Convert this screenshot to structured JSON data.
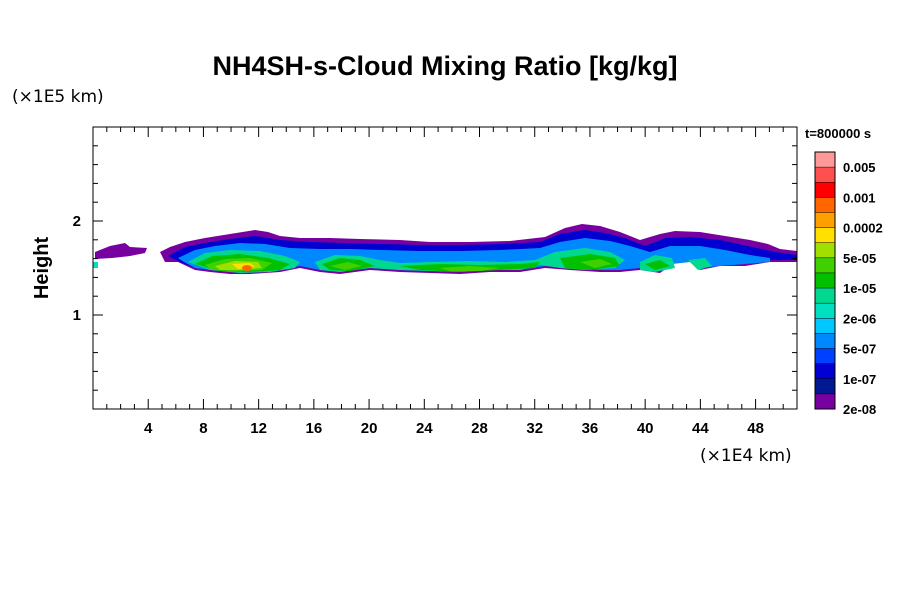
{
  "chart_data": {
    "type": "heatmap",
    "title": "NH4SH-s-Cloud Mixing Ratio [kg/kg]",
    "ylabel": "Height",
    "x_unit": "(×1E4 km)",
    "y_unit": "(×1E5 km)",
    "time_label": "t=800000 s",
    "xlim": [
      0,
      51
    ],
    "ylim": [
      0,
      3
    ],
    "x_ticks": [
      "4",
      "8",
      "12",
      "16",
      "20",
      "24",
      "28",
      "32",
      "36",
      "40",
      "44",
      "48"
    ],
    "x_tick_values": [
      4,
      8,
      12,
      16,
      20,
      24,
      28,
      32,
      36,
      40,
      44,
      48
    ],
    "y_ticks": [
      "1",
      "2"
    ],
    "y_tick_values": [
      1,
      2
    ],
    "legend": {
      "labels": [
        "0.005",
        "0.001",
        "0.0002",
        "5e-05",
        "1e-05",
        "2e-06",
        "5e-07",
        "1e-07",
        "2e-08"
      ],
      "colors": [
        "#ff9999",
        "#ff5050",
        "#ff0000",
        "#ff6600",
        "#ffa000",
        "#ffe000",
        "#a0e000",
        "#40d000",
        "#00c000",
        "#00d890",
        "#00e0c0",
        "#00c8ff",
        "#0088ff",
        "#0040ff",
        "#0000d0",
        "#001890",
        "#7800a0"
      ]
    },
    "cloud_layer": {
      "base_height": 1.45,
      "top_height": 1.95,
      "x_extent": [
        0,
        51
      ],
      "cores": [
        {
          "x": 11,
          "level": "0.0002"
        },
        {
          "x": 18,
          "level": "5e-05"
        },
        {
          "x": 26,
          "level": "5e-05"
        },
        {
          "x": 36,
          "level": "1e-05"
        },
        {
          "x": 41,
          "level": "1e-05"
        }
      ]
    }
  }
}
